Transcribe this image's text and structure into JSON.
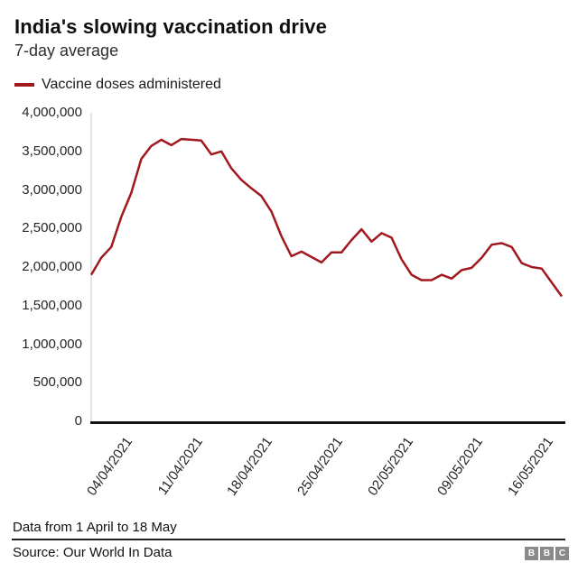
{
  "header": {
    "title": "India's slowing vaccination drive",
    "subtitle": "7-day average"
  },
  "legend": {
    "label": "Vaccine doses administered",
    "color": "#a1181e"
  },
  "footer": {
    "note": "Data from 1 April to 18 May",
    "source": "Source: Our World In Data",
    "logo_letters": [
      "B",
      "B",
      "C"
    ],
    "logo_color": "#8a8a8a"
  },
  "chart_data": {
    "type": "line",
    "title": "India's slowing vaccination drive",
    "subtitle": "7-day average",
    "grid": false,
    "legend_position": "top-left",
    "ylabel": "",
    "xlabel": "",
    "ylim": [
      0,
      4000000
    ],
    "y_ticks": [
      {
        "value": 4000000,
        "label": "4,000,000"
      },
      {
        "value": 3500000,
        "label": "3,500,000"
      },
      {
        "value": 3000000,
        "label": "3,000,000"
      },
      {
        "value": 2500000,
        "label": "2,500,000"
      },
      {
        "value": 2000000,
        "label": "2,000,000"
      },
      {
        "value": 1500000,
        "label": "1,500,000"
      },
      {
        "value": 1000000,
        "label": "1,000,000"
      },
      {
        "value": 500000,
        "label": "500,000"
      },
      {
        "value": 0,
        "label": "0"
      }
    ],
    "x_range_note": "Daily points, 1 April 2021 to 18 May 2021",
    "x_tick_labels": [
      "04/04/2021",
      "11/04/2021",
      "18/04/2021",
      "25/04/2021",
      "02/05/2021",
      "09/05/2021",
      "16/05/2021"
    ],
    "x_tick_day_index": [
      3,
      10,
      17,
      24,
      31,
      38,
      45
    ],
    "axis_colors": {
      "baseline": "#141414",
      "yaxis_line": "#c9c9c9"
    },
    "series": [
      {
        "name": "Vaccine doses administered",
        "color": "#a1181e",
        "values": [
          1900000,
          2120000,
          2260000,
          2650000,
          2960000,
          3400000,
          3570000,
          3650000,
          3580000,
          3660000,
          3650000,
          3640000,
          3460000,
          3500000,
          3280000,
          3130000,
          3020000,
          2920000,
          2720000,
          2400000,
          2140000,
          2200000,
          2130000,
          2060000,
          2190000,
          2190000,
          2350000,
          2490000,
          2330000,
          2440000,
          2380000,
          2100000,
          1900000,
          1830000,
          1830000,
          1900000,
          1850000,
          1960000,
          1990000,
          2120000,
          2290000,
          2310000,
          2260000,
          2050000,
          2000000,
          1980000,
          1800000,
          1620000
        ]
      }
    ]
  }
}
